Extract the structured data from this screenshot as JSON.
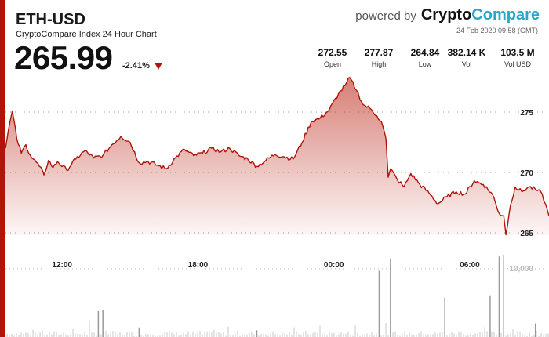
{
  "header": {
    "title": "ETH-USD",
    "subtitle": "CryptoCompare Index 24 Hour Chart",
    "price": "265.99",
    "change": "-2.41%",
    "brand_prefix": "powered by",
    "brand_name_1": "Crypto",
    "brand_name_2": "Compare",
    "timestamp": "24 Feb 2020 09:58 (GMT)"
  },
  "stats": [
    {
      "value": "272.55",
      "label": "Open"
    },
    {
      "value": "277.87",
      "label": "High"
    },
    {
      "value": "264.84",
      "label": "Low"
    },
    {
      "value": "382.14 K",
      "label": "Vol"
    },
    {
      "value": "103.5 M",
      "label": "Vol USD"
    }
  ],
  "colors": {
    "accent": "#b0140a",
    "line": "#b0140a",
    "brand_blue": "#2aa6c9"
  },
  "chart_data": {
    "type": "area",
    "x_range_hours": [
      -0.5,
      23.5
    ],
    "x_ticks": [
      {
        "h": 2,
        "label": "12:00"
      },
      {
        "h": 8,
        "label": "18:00"
      },
      {
        "h": 14,
        "label": "00:00"
      },
      {
        "h": 20,
        "label": "06:00"
      }
    ],
    "y_ticks": [
      275,
      270,
      265
    ],
    "ylim": [
      264.3,
      278.5
    ],
    "price_series": [
      [
        -0.5,
        272.0
      ],
      [
        -0.3,
        274.2
      ],
      [
        -0.2,
        275.1
      ],
      [
        0.0,
        272.8
      ],
      [
        0.2,
        271.6
      ],
      [
        0.4,
        272.3
      ],
      [
        0.6,
        271.4
      ],
      [
        1.0,
        270.5
      ],
      [
        1.2,
        269.8
      ],
      [
        1.4,
        271.0
      ],
      [
        1.6,
        270.4
      ],
      [
        1.8,
        270.9
      ],
      [
        2.2,
        270.2
      ],
      [
        2.6,
        271.1
      ],
      [
        3.0,
        271.8
      ],
      [
        3.4,
        271.2
      ],
      [
        3.8,
        271.4
      ],
      [
        4.2,
        272.3
      ],
      [
        4.6,
        273.0
      ],
      [
        5.0,
        272.5
      ],
      [
        5.4,
        270.8
      ],
      [
        5.8,
        270.9
      ],
      [
        6.2,
        270.6
      ],
      [
        6.6,
        270.3
      ],
      [
        7.0,
        271.2
      ],
      [
        7.4,
        271.9
      ],
      [
        7.8,
        271.4
      ],
      [
        8.2,
        271.6
      ],
      [
        8.6,
        272.0
      ],
      [
        9.0,
        271.7
      ],
      [
        9.4,
        272.0
      ],
      [
        9.8,
        271.4
      ],
      [
        10.2,
        271.1
      ],
      [
        10.6,
        270.5
      ],
      [
        11.0,
        271.0
      ],
      [
        11.4,
        271.5
      ],
      [
        11.8,
        271.3
      ],
      [
        12.2,
        271.1
      ],
      [
        12.6,
        272.5
      ],
      [
        13.0,
        274.2
      ],
      [
        13.4,
        274.5
      ],
      [
        13.8,
        275.2
      ],
      [
        14.2,
        276.5
      ],
      [
        14.5,
        277.2
      ],
      [
        14.7,
        277.87
      ],
      [
        15.0,
        276.8
      ],
      [
        15.3,
        275.6
      ],
      [
        15.6,
        275.3
      ],
      [
        15.9,
        274.7
      ],
      [
        16.1,
        274.2
      ],
      [
        16.3,
        272.8
      ],
      [
        16.4,
        269.6
      ],
      [
        16.5,
        270.3
      ],
      [
        16.8,
        269.4
      ],
      [
        17.1,
        268.8
      ],
      [
        17.4,
        269.9
      ],
      [
        17.8,
        269.0
      ],
      [
        18.2,
        268.3
      ],
      [
        18.6,
        267.4
      ],
      [
        19.0,
        268.0
      ],
      [
        19.4,
        268.4
      ],
      [
        19.8,
        268.2
      ],
      [
        20.2,
        269.3
      ],
      [
        20.6,
        269.0
      ],
      [
        21.0,
        268.2
      ],
      [
        21.3,
        266.6
      ],
      [
        21.5,
        266.4
      ],
      [
        21.6,
        264.84
      ],
      [
        21.8,
        267.3
      ],
      [
        22.0,
        268.8
      ],
      [
        22.3,
        268.4
      ],
      [
        22.6,
        268.8
      ],
      [
        22.9,
        268.6
      ],
      [
        23.2,
        268.2
      ],
      [
        23.5,
        266.4
      ]
    ],
    "volume_ref": "10,000",
    "volume_max": 14000,
    "volume_spikes": [
      [
        3.6,
        3800
      ],
      [
        3.8,
        3900
      ],
      [
        5.4,
        1400
      ],
      [
        10.6,
        1000
      ],
      [
        16.0,
        9700
      ],
      [
        16.5,
        11500
      ],
      [
        18.9,
        5800
      ],
      [
        20.9,
        6000
      ],
      [
        21.3,
        11800
      ],
      [
        21.5,
        12000
      ],
      [
        22.9,
        2000
      ]
    ]
  }
}
